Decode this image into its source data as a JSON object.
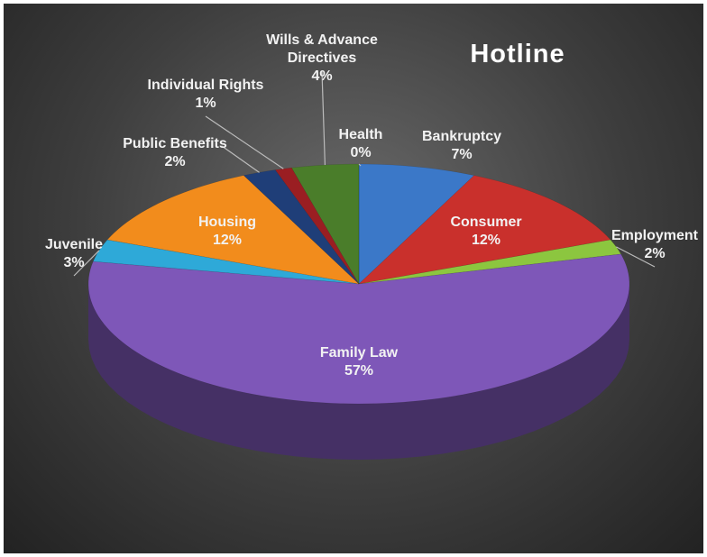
{
  "chart_data": {
    "type": "pie",
    "title": "Hotline",
    "categories": [
      "Bankruptcy",
      "Consumer",
      "Employment",
      "Family Law",
      "Juvenile",
      "Housing",
      "Public Benefits",
      "Individual Rights",
      "Wills & Advance Directives",
      "Health"
    ],
    "values": [
      7,
      12,
      2,
      57,
      3,
      12,
      2,
      1,
      4,
      0
    ],
    "value_labels": [
      "7%",
      "12%",
      "2%",
      "57%",
      "3%",
      "12%",
      "2%",
      "1%",
      "4%",
      "0%"
    ],
    "colors": [
      "#3b78c8",
      "#c9302c",
      "#8cc63f",
      "#7e57b8",
      "#2ea9d8",
      "#f28c1c",
      "#1f3e78",
      "#9a1e22",
      "#4a7d2a",
      "#2a6f8c"
    ]
  }
}
